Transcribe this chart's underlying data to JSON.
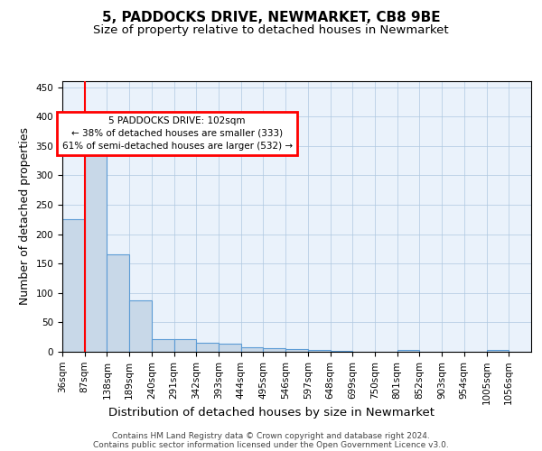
{
  "title": "5, PADDOCKS DRIVE, NEWMARKET, CB8 9BE",
  "subtitle": "Size of property relative to detached houses in Newmarket",
  "xlabel": "Distribution of detached houses by size in Newmarket",
  "ylabel": "Number of detached properties",
  "bin_labels": [
    "36sqm",
    "87sqm",
    "138sqm",
    "189sqm",
    "240sqm",
    "291sqm",
    "342sqm",
    "393sqm",
    "444sqm",
    "495sqm",
    "546sqm",
    "597sqm",
    "648sqm",
    "699sqm",
    "750sqm",
    "801sqm",
    "852sqm",
    "903sqm",
    "954sqm",
    "1005sqm",
    "1056sqm"
  ],
  "bar_heights": [
    225,
    335,
    165,
    88,
    22,
    22,
    15,
    14,
    7,
    6,
    4,
    3,
    2,
    0,
    0,
    3,
    0,
    0,
    0,
    3,
    0
  ],
  "bar_color": "#c8d8e8",
  "bar_edge_color": "#5b9bd5",
  "red_line_x": 1.0,
  "ylim": [
    0,
    460
  ],
  "yticks": [
    0,
    50,
    100,
    150,
    200,
    250,
    300,
    350,
    400,
    450
  ],
  "annotation_box_text": "5 PADDOCKS DRIVE: 102sqm\n← 38% of detached houses are smaller (333)\n61% of semi-detached houses are larger (532) →",
  "annotation_box_color": "#ff0000",
  "footer_line1": "Contains HM Land Registry data © Crown copyright and database right 2024.",
  "footer_line2": "Contains public sector information licensed under the Open Government Licence v3.0.",
  "bg_color": "#ffffff",
  "axes_bg_color": "#eaf2fb",
  "grid_color": "#aec8e0",
  "title_fontsize": 11,
  "subtitle_fontsize": 9.5,
  "axis_label_fontsize": 9,
  "tick_fontsize": 7.5,
  "footer_fontsize": 6.5
}
